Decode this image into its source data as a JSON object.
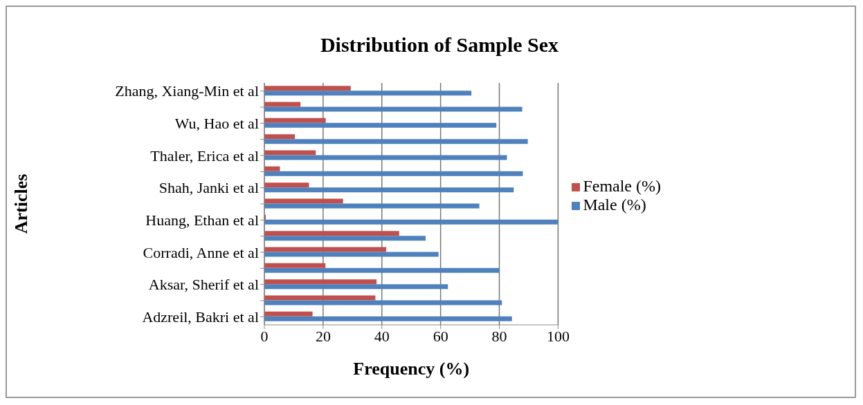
{
  "chart_data": {
    "type": "bar",
    "orientation": "horizontal",
    "title": "Distribution of Sample Sex",
    "xlabel": "Frequency (%)",
    "ylabel": "Articles",
    "categories": [
      "Zhang, Xiang-Min et al",
      null,
      "Wu, Hao et al",
      null,
      "Thaler, Erica et al",
      null,
      "Shah, Janki et al",
      null,
      "Huang, Ethan et al",
      null,
      "Corradi, Anne et al",
      null,
      "Aksar, Sherif et al",
      null,
      "Adzreil, Bakri et al"
    ],
    "series": [
      {
        "name": "Female (%)",
        "color": "#c0504d",
        "values": [
          29.4,
          12.3,
          20.9,
          10.4,
          17.5,
          5.3,
          15.2,
          26.8,
          0.5,
          45.9,
          41.5,
          20.8,
          38.2,
          37.8,
          16.4
        ]
      },
      {
        "name": "Male (%)",
        "color": "#4f81bd",
        "values": [
          70.5,
          87.8,
          79,
          89.7,
          82.6,
          88,
          84.9,
          73.2,
          100,
          54.9,
          59.3,
          80,
          62.5,
          80.9,
          84.3
        ]
      }
    ],
    "xlim": [
      0,
      100
    ],
    "xticks": [
      0,
      20,
      40,
      60,
      80,
      100
    ],
    "grid": "x",
    "legend": "right"
  }
}
